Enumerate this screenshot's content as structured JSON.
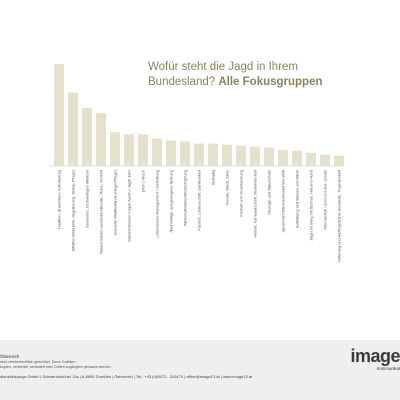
{
  "title": {
    "line1": "Wofür steht die Jagd in Ihrem",
    "line2_prefix": "Bundesland?",
    "line2_bold": "Alle Fokusgruppen"
  },
  "chart_data": {
    "type": "bar",
    "color": "#e6e1cd",
    "ylim": [
      0,
      100
    ],
    "categories": [
      "Tradition, Brauchtum, Kulturbetrag",
      "Wildtier-Wald (inkl. Regulierung, Biotop-Pflege)",
      "Gesundes, hochwertiges Wildbret",
      "Naturerlebnis/ verbunden/Bevölk., Ruhe, Freiheit",
      "Gesunde Wildbestände (Hege/Pflege)",
      "Gams/Gämsen/ Kogel/ Auerh./ Jagd/ Jahr",
      "(Rot-) Hirsch",
      "Lebensraum-Management / Gestaltung",
      "Nachhaltige, ausgewogene Nutzung",
      "Wirtschaftsfaktor/Wertschöpfung",
      "Passion, Leidenschaft, Dankbarkeit",
      "Beihaltiq",
      "Freude, Glück, Stolz",
      "Freiheit und Verantwortung",
      "Heimat, Kameradschaft, Verbundenheit",
      "Ökologie und Naturschutz",
      "Sprachrohr/Stimme/Anwalt fürs Wild",
      "Aufklärung und Wissen vermitteln",
      "Jäger im Berg mit Büchse, Hut und Hund",
      "Artenvielfalt / erschont und -schutz",
      "Fütterung und Auffinge/Echte Bestände, Trophäenkult"
    ],
    "values": [
      100,
      72,
      57,
      52,
      33,
      31,
      31,
      27,
      25,
      24,
      22,
      22,
      21,
      20,
      19,
      18,
      16,
      15,
      13,
      11,
      10
    ]
  },
  "footer": {
    "line1": "Österreich",
    "line2": "sind urheberrechtlich geschützt. Diese Grafiken",
    "line3": "kopiert, verbreitet, verändert oder Dritten zugänglich gemacht werden.",
    "line4": "dienstleistungs GmbH | Schwendebühel 13a | A-6850 Dornbirn | Österreich | Tel.: +43 (0)5572 - 310475 | office@image13.at | www.image13.at",
    "brand": "image",
    "tagline": "Kommunikat"
  }
}
